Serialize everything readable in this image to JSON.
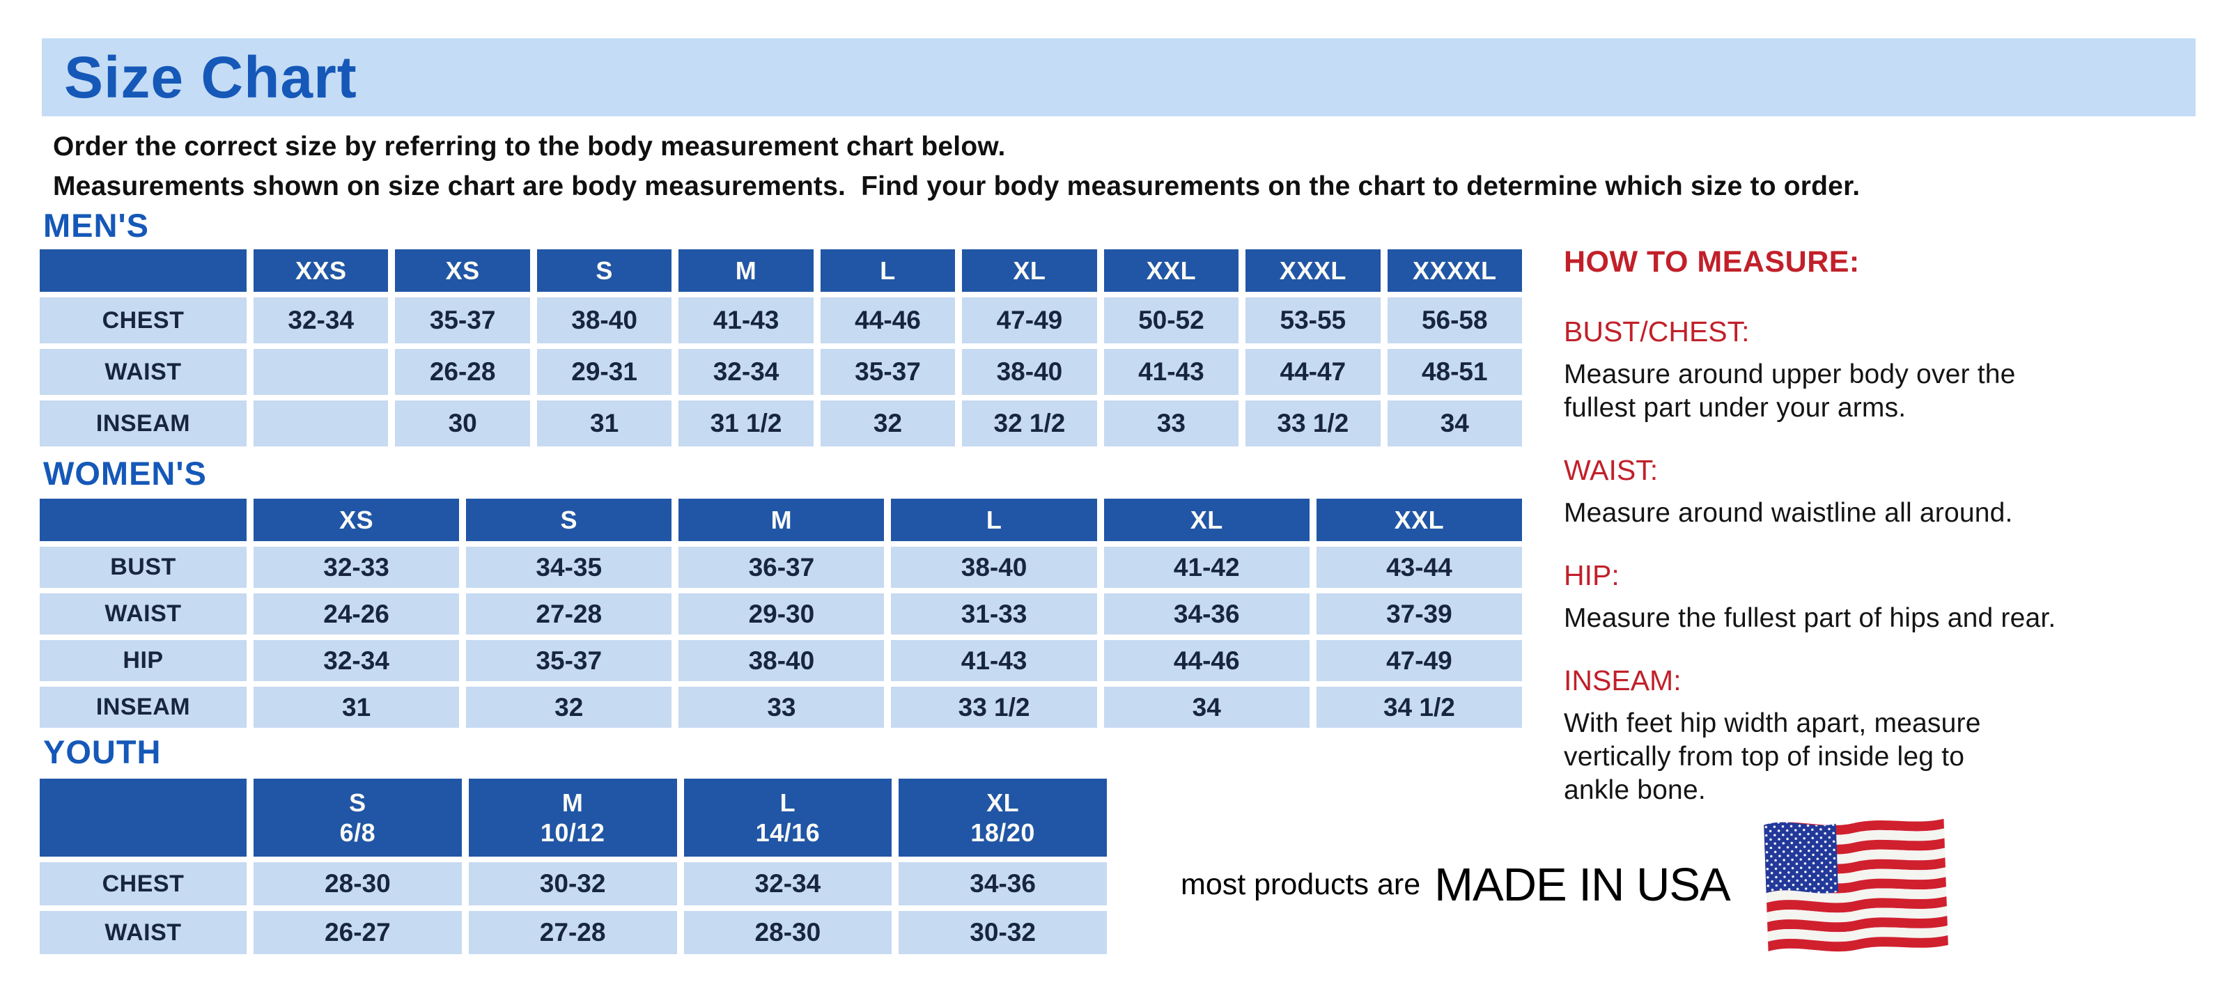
{
  "title": "Size Chart",
  "intro": {
    "line1": "Order the correct size by referring to the body measurement chart below.",
    "line2": "Measurements shown on size chart are body measurements.  Find your body measurements on the chart to determine which size to order."
  },
  "colors": {
    "band_blue": "#c4dcf5",
    "header_blue": "#2156a6",
    "cell_blue": "#c6daf1",
    "heading_blue": "#1558b8",
    "accent_red": "#c1202a",
    "cell_text_navy": "#17253f"
  },
  "tables": {
    "mens": {
      "label": "MEN'S",
      "sizes": [
        "XXS",
        "XS",
        "S",
        "M",
        "L",
        "XL",
        "XXL",
        "XXXL",
        "XXXXL"
      ],
      "rows": [
        {
          "label": "CHEST",
          "values": [
            "32-34",
            "35-37",
            "38-40",
            "41-43",
            "44-46",
            "47-49",
            "50-52",
            "53-55",
            "56-58"
          ]
        },
        {
          "label": "WAIST",
          "values": [
            "",
            "26-28",
            "29-31",
            "32-34",
            "35-37",
            "38-40",
            "41-43",
            "44-47",
            "48-51"
          ]
        },
        {
          "label": "INSEAM",
          "values": [
            "",
            "30",
            "31",
            "31 1/2",
            "32",
            "32 1/2",
            "33",
            "33 1/2",
            "34"
          ]
        }
      ]
    },
    "womens": {
      "label": "WOMEN'S",
      "sizes": [
        "XS",
        "S",
        "M",
        "L",
        "XL",
        "XXL"
      ],
      "rows": [
        {
          "label": "BUST",
          "values": [
            "32-33",
            "34-35",
            "36-37",
            "38-40",
            "41-42",
            "43-44"
          ]
        },
        {
          "label": "WAIST",
          "values": [
            "24-26",
            "27-28",
            "29-30",
            "31-33",
            "34-36",
            "37-39"
          ]
        },
        {
          "label": "HIP",
          "values": [
            "32-34",
            "35-37",
            "38-40",
            "41-43",
            "44-46",
            "47-49"
          ]
        },
        {
          "label": "INSEAM",
          "values": [
            "31",
            "32",
            "33",
            "33 1/2",
            "34",
            "34 1/2"
          ]
        }
      ]
    },
    "youth": {
      "label": "YOUTH",
      "sizes": [
        "S\n6/8",
        "M\n10/12",
        "L\n14/16",
        "XL\n18/20"
      ],
      "rows": [
        {
          "label": "CHEST",
          "values": [
            "28-30",
            "30-32",
            "32-34",
            "34-36"
          ]
        },
        {
          "label": "WAIST",
          "values": [
            "26-27",
            "27-28",
            "28-30",
            "30-32"
          ]
        }
      ]
    }
  },
  "how_to_measure": {
    "title": "HOW TO MEASURE:",
    "sections": [
      {
        "heading": "BUST/CHEST:",
        "text": "Measure around upper body over the\nfullest part under your arms."
      },
      {
        "heading": "WAIST:",
        "text": "Measure around waistline all around."
      },
      {
        "heading": "HIP:",
        "text": "Measure the fullest part of hips and rear."
      },
      {
        "heading": "INSEAM:",
        "text": "With feet hip width apart, measure\nvertically from top of inside leg to\nankle bone."
      }
    ]
  },
  "made_in_usa": {
    "prefix": "most products are",
    "main": "MADE IN USA",
    "flag_icon": "usa-flag"
  }
}
